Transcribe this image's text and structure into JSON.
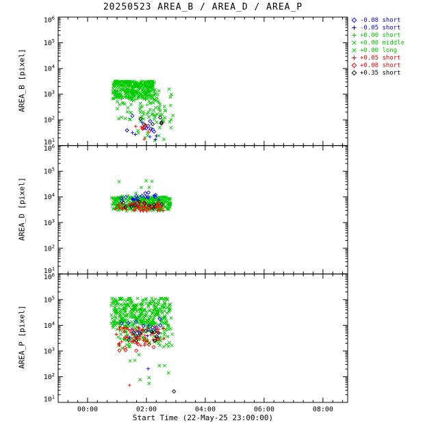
{
  "chart_data": {
    "type": "scatter",
    "title": "20250523 AREA_B / AREA_D / AREA_P",
    "seed": 20250523,
    "x_axis": {
      "label": "Start Time (22-May-25 23:00:00)",
      "ticks": [
        "00:00",
        "02:00",
        "04:00",
        "06:00",
        "08:00"
      ],
      "tick_hours": [
        0,
        2,
        4,
        6,
        8
      ],
      "range_hours": [
        -1,
        8.84
      ]
    },
    "y_axis": {
      "scale": "log",
      "log_range": [
        1,
        6
      ],
      "tick_labels": [
        "10^1",
        "10^2",
        "10^3",
        "10^4",
        "10^5",
        "10^6"
      ]
    },
    "series": [
      {
        "id": "m008_short",
        "label": "-0.08 short",
        "color": "#0000ff",
        "symbol": "diamond"
      },
      {
        "id": "m005_short",
        "label": "-0.05 short",
        "color": "#0000ff",
        "symbol": "plus"
      },
      {
        "id": "p000_short",
        "label": "+0.00 short",
        "color": "#00cc00",
        "symbol": "plus"
      },
      {
        "id": "p000_middle",
        "label": "+0.00 middle",
        "color": "#00cc00",
        "symbol": "cross"
      },
      {
        "id": "p000_long",
        "label": "+0.00 long",
        "color": "#00cc00",
        "symbol": "cross"
      },
      {
        "id": "p005_short",
        "label": "+0.05 short",
        "color": "#ff0000",
        "symbol": "plus"
      },
      {
        "id": "p008_short",
        "label": "+0.08 short",
        "color": "#ff0000",
        "symbol": "diamond"
      },
      {
        "id": "p035_short",
        "label": "+0.35 short",
        "color": "#000000",
        "symbol": "diamond"
      }
    ],
    "panels": [
      {
        "name": "AREA_B",
        "ylabel": "AREA_B [pixel]",
        "clusters": [
          {
            "s": "p000_long",
            "t": [
              0.85,
              2.25
            ],
            "log": [
              2.85,
              3.5
            ],
            "n": 170,
            "bias": "top"
          },
          {
            "s": "p000_middle",
            "t": [
              0.85,
              2.3
            ],
            "log": [
              2.8,
              3.45
            ],
            "n": 80,
            "bias": "top"
          },
          {
            "s": "p000_short",
            "t": [
              0.9,
              2.2
            ],
            "log": [
              2.5,
              3.35
            ],
            "n": 40
          },
          {
            "s": "p000_long",
            "t": [
              1.0,
              2.9
            ],
            "log": [
              1.95,
              3.2
            ],
            "n": 85
          },
          {
            "s": "p000_middle",
            "t": [
              1.7,
              2.85
            ],
            "log": [
              1.15,
              2.4
            ],
            "n": 18
          },
          {
            "s": "m008_short",
            "t": [
              1.3,
              2.5
            ],
            "log": [
              1.5,
              2.35
            ],
            "n": 9
          },
          {
            "s": "m005_short",
            "t": [
              1.5,
              2.45
            ],
            "log": [
              1.15,
              2.0
            ],
            "n": 6
          },
          {
            "s": "p005_short",
            "t": [
              1.6,
              2.3
            ],
            "log": [
              1.05,
              1.9
            ],
            "n": 5
          },
          {
            "s": "p008_short",
            "t": [
              1.5,
              2.2
            ],
            "log": [
              1.3,
              1.8
            ],
            "n": 4
          },
          {
            "s": "p035_short",
            "t": [
              1.5,
              2.55
            ],
            "log": [
              1.45,
              2.25
            ],
            "n": 6
          }
        ]
      },
      {
        "name": "AREA_D",
        "ylabel": "AREA_D [pixel]",
        "clusters": [
          {
            "s": "p000_long",
            "t": [
              0.8,
              2.85
            ],
            "log": [
              3.5,
              4.0
            ],
            "n": 190
          },
          {
            "s": "p000_middle",
            "t": [
              0.85,
              2.8
            ],
            "log": [
              3.45,
              4.05
            ],
            "n": 85
          },
          {
            "s": "p000_short",
            "t": [
              0.9,
              2.6
            ],
            "log": [
              3.5,
              3.95
            ],
            "n": 40
          },
          {
            "s": "p000_middle",
            "t": [
              1.0,
              2.4
            ],
            "log": [
              4.15,
              4.65
            ],
            "n": 6
          },
          {
            "s": "m008_short",
            "t": [
              0.95,
              2.5
            ],
            "log": [
              3.8,
              4.2
            ],
            "n": 14
          },
          {
            "s": "m005_short",
            "t": [
              1.0,
              2.5
            ],
            "log": [
              3.6,
              4.05
            ],
            "n": 9
          },
          {
            "s": "p005_short",
            "t": [
              0.95,
              2.6
            ],
            "log": [
              3.45,
              3.75
            ],
            "n": 45
          },
          {
            "s": "p008_short",
            "t": [
              1.1,
              2.5
            ],
            "log": [
              3.5,
              3.8
            ],
            "n": 10
          },
          {
            "s": "p035_short",
            "t": [
              1.2,
              2.6
            ],
            "log": [
              3.55,
              3.95
            ],
            "n": 10
          }
        ]
      },
      {
        "name": "AREA_P",
        "ylabel": "AREA_P [pixel]",
        "clusters": [
          {
            "s": "p000_long",
            "t": [
              0.8,
              2.85
            ],
            "log": [
              3.8,
              5.05
            ],
            "n": 150,
            "bias": "top"
          },
          {
            "s": "p000_long",
            "t": [
              0.9,
              2.7
            ],
            "log": [
              4.0,
              4.7
            ],
            "n": 80
          },
          {
            "s": "p000_middle",
            "t": [
              0.85,
              2.8
            ],
            "log": [
              3.9,
              4.85
            ],
            "n": 80
          },
          {
            "s": "p000_short",
            "t": [
              0.9,
              2.6
            ],
            "log": [
              3.4,
              4.2
            ],
            "n": 50
          },
          {
            "s": "p000_long",
            "t": [
              1.0,
              2.9
            ],
            "log": [
              3.1,
              3.9
            ],
            "n": 45
          },
          {
            "s": "p000_middle",
            "t": [
              1.3,
              2.9
            ],
            "log": [
              1.6,
              3.0
            ],
            "n": 9
          },
          {
            "s": "m008_short",
            "t": [
              1.0,
              2.5
            ],
            "log": [
              3.7,
              4.25
            ],
            "n": 12
          },
          {
            "s": "m005_short",
            "t": [
              1.1,
              2.4
            ],
            "log": [
              3.5,
              4.05
            ],
            "n": 8
          },
          {
            "s": "m005_short",
            "t": [
              2.05,
              2.15
            ],
            "log": [
              2.3,
              2.45
            ],
            "n": 1
          },
          {
            "s": "p005_short",
            "t": [
              0.95,
              2.6
            ],
            "log": [
              3.2,
              3.95
            ],
            "n": 55
          },
          {
            "s": "p005_short",
            "t": [
              1.35,
              1.45
            ],
            "log": [
              1.55,
              1.7
            ],
            "n": 1
          },
          {
            "s": "p008_short",
            "t": [
              1.0,
              2.5
            ],
            "log": [
              3.0,
              3.7
            ],
            "n": 12
          },
          {
            "s": "p035_short",
            "t": [
              1.2,
              2.6
            ],
            "log": [
              3.3,
              3.95
            ],
            "n": 10
          },
          {
            "s": "p035_short",
            "t": [
              2.85,
              2.95
            ],
            "log": [
              1.4,
              1.55
            ],
            "n": 1
          }
        ]
      }
    ],
    "legend_position": "top-right",
    "grid": false
  }
}
